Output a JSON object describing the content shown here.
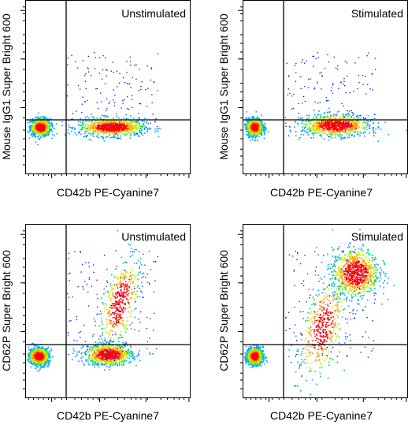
{
  "chart_data": [
    {
      "type": "scatter",
      "style": "flow-cytometry-density-dot-plot",
      "title": "Unstimulated",
      "xlabel": "CD42b PE-Cyanine7",
      "ylabel": "Mouse IgG1 Super Bright 600",
      "x_scale": "log",
      "y_scale": "log",
      "quadrant_gate": {
        "x": 0.22,
        "y": 0.32
      },
      "populations": [
        {
          "name": "",
          "x": 0.09,
          "y": 0.27,
          "spread": [
            0.03,
            0.025
          ],
          "density": "high"
        },
        {
          "name": "",
          "x": 0.52,
          "y": 0.27,
          "spread": [
            0.1,
            0.025
          ],
          "density": "high"
        }
      ]
    },
    {
      "type": "scatter",
      "style": "flow-cytometry-density-dot-plot",
      "title": "Stimulated",
      "xlabel": "CD42b PE-Cyanine7",
      "ylabel": "Mouse IgG1 Super Bright 600",
      "x_scale": "log",
      "y_scale": "log",
      "quadrant_gate": {
        "x": 0.22,
        "y": 0.32
      },
      "populations": [
        {
          "name": "",
          "x": 0.07,
          "y": 0.27,
          "spread": [
            0.025,
            0.025
          ],
          "density": "high"
        },
        {
          "name": "",
          "x": 0.56,
          "y": 0.28,
          "spread": [
            0.1,
            0.03
          ],
          "density": "high"
        }
      ]
    },
    {
      "type": "scatter",
      "style": "flow-cytometry-density-dot-plot",
      "title": "Unstimulated",
      "xlabel": "CD42b PE-Cyanine7",
      "ylabel": "CD62P Super Bright 600",
      "x_scale": "log",
      "y_scale": "log",
      "quadrant_gate": {
        "x": 0.22,
        "y": 0.29
      },
      "populations": [
        {
          "name": "",
          "x": 0.08,
          "y": 0.24,
          "spread": [
            0.03,
            0.025
          ],
          "density": "high"
        },
        {
          "name": "",
          "x": 0.5,
          "y": 0.25,
          "spread": [
            0.07,
            0.03
          ],
          "density": "high"
        },
        {
          "name": "",
          "x": 0.57,
          "y": 0.55,
          "spread": [
            0.05,
            0.13
          ],
          "density": "medium"
        }
      ]
    },
    {
      "type": "scatter",
      "style": "flow-cytometry-density-dot-plot",
      "title": "Stimulated",
      "xlabel": "CD42b PE-Cyanine7",
      "ylabel": "CD62P Super Bright 600",
      "x_scale": "log",
      "y_scale": "log",
      "quadrant_gate": {
        "x": 0.22,
        "y": 0.29
      },
      "populations": [
        {
          "name": "",
          "x": 0.07,
          "y": 0.24,
          "spread": [
            0.025,
            0.025
          ],
          "density": "high"
        },
        {
          "name": "",
          "x": 0.68,
          "y": 0.72,
          "spread": [
            0.07,
            0.07
          ],
          "density": "high"
        },
        {
          "name": "",
          "x": 0.48,
          "y": 0.4,
          "spread": [
            0.06,
            0.14
          ],
          "density": "medium"
        }
      ]
    }
  ]
}
